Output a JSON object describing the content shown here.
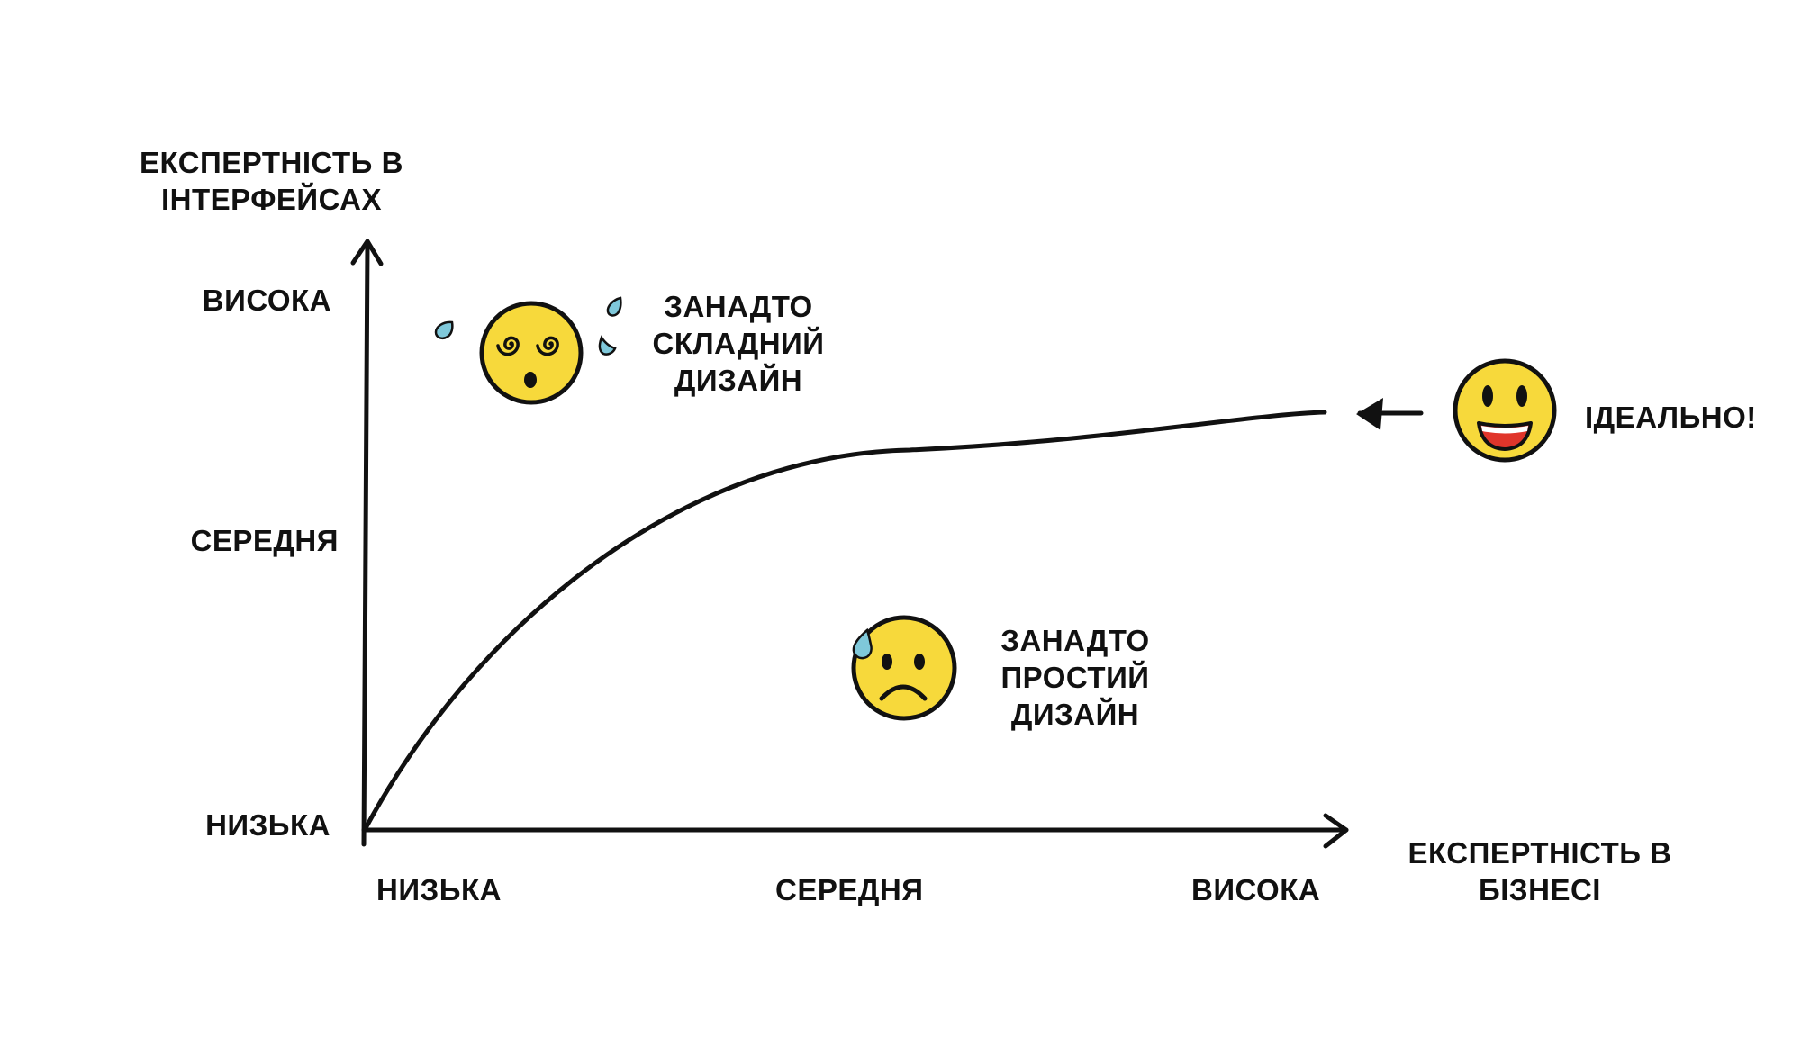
{
  "y_axis": {
    "title_lines": [
      "ЕКСПЕРТНІСТЬ В",
      "ІНТЕРФЕЙСАХ"
    ],
    "ticks": [
      "ВИСОКА",
      "СЕРЕДНЯ",
      "НИЗЬКА"
    ]
  },
  "x_axis": {
    "title_lines": [
      "ЕКСПЕРТНІСТЬ В",
      "БІЗНЕСІ"
    ],
    "ticks": [
      "НИЗЬКА",
      "СЕРЕДНЯ",
      "ВИСОКА"
    ]
  },
  "annotations": {
    "complex": [
      "ЗАНАДТО",
      "СКЛАДНИЙ",
      "ДИЗАЙН"
    ],
    "simple": [
      "ЗАНАДТО",
      "ПРОСТИЙ",
      "ДИЗАЙН"
    ],
    "ideal": "ІДЕАЛЬНО!"
  },
  "icons": {
    "complex": "dizzy-face-icon",
    "simple": "sad-sweat-face-icon",
    "ideal": "grinning-face-icon",
    "pointer": "arrow-left-icon"
  },
  "colors": {
    "ink": "#111111",
    "face": "#F7D93B",
    "tear": "#7FC8DA",
    "mouth": "#E0352B"
  }
}
